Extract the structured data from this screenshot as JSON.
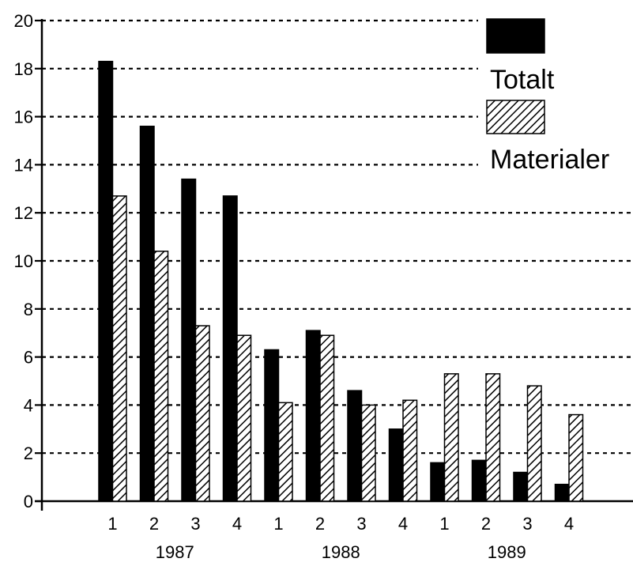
{
  "chart_data": {
    "type": "bar",
    "title": "",
    "xlabel": "",
    "ylabel": "",
    "ylim": [
      0,
      20
    ],
    "y_ticks": [
      "0",
      "2",
      "4",
      "6",
      "8",
      "10",
      "12",
      "14",
      "16",
      "18",
      "20"
    ],
    "grid": "horizontal dashed",
    "legend_position": "top-right",
    "categories": [
      "1",
      "2",
      "3",
      "4",
      "1",
      "2",
      "3",
      "4",
      "1",
      "2",
      "3",
      "4"
    ],
    "groups": [
      {
        "label": "1987",
        "count": 4
      },
      {
        "label": "1988",
        "count": 4
      },
      {
        "label": "1989",
        "count": 4
      }
    ],
    "series": [
      {
        "name": "Totalt",
        "fill": "solid black",
        "values": [
          18.3,
          15.6,
          13.4,
          12.7,
          6.3,
          7.1,
          4.6,
          3.0,
          1.6,
          1.7,
          1.2,
          0.7
        ]
      },
      {
        "name": "Materialer",
        "fill": "diagonal hatch",
        "values": [
          12.7,
          10.4,
          7.3,
          6.9,
          4.1,
          6.9,
          4.0,
          4.2,
          5.3,
          5.3,
          4.8,
          3.6
        ]
      }
    ]
  }
}
